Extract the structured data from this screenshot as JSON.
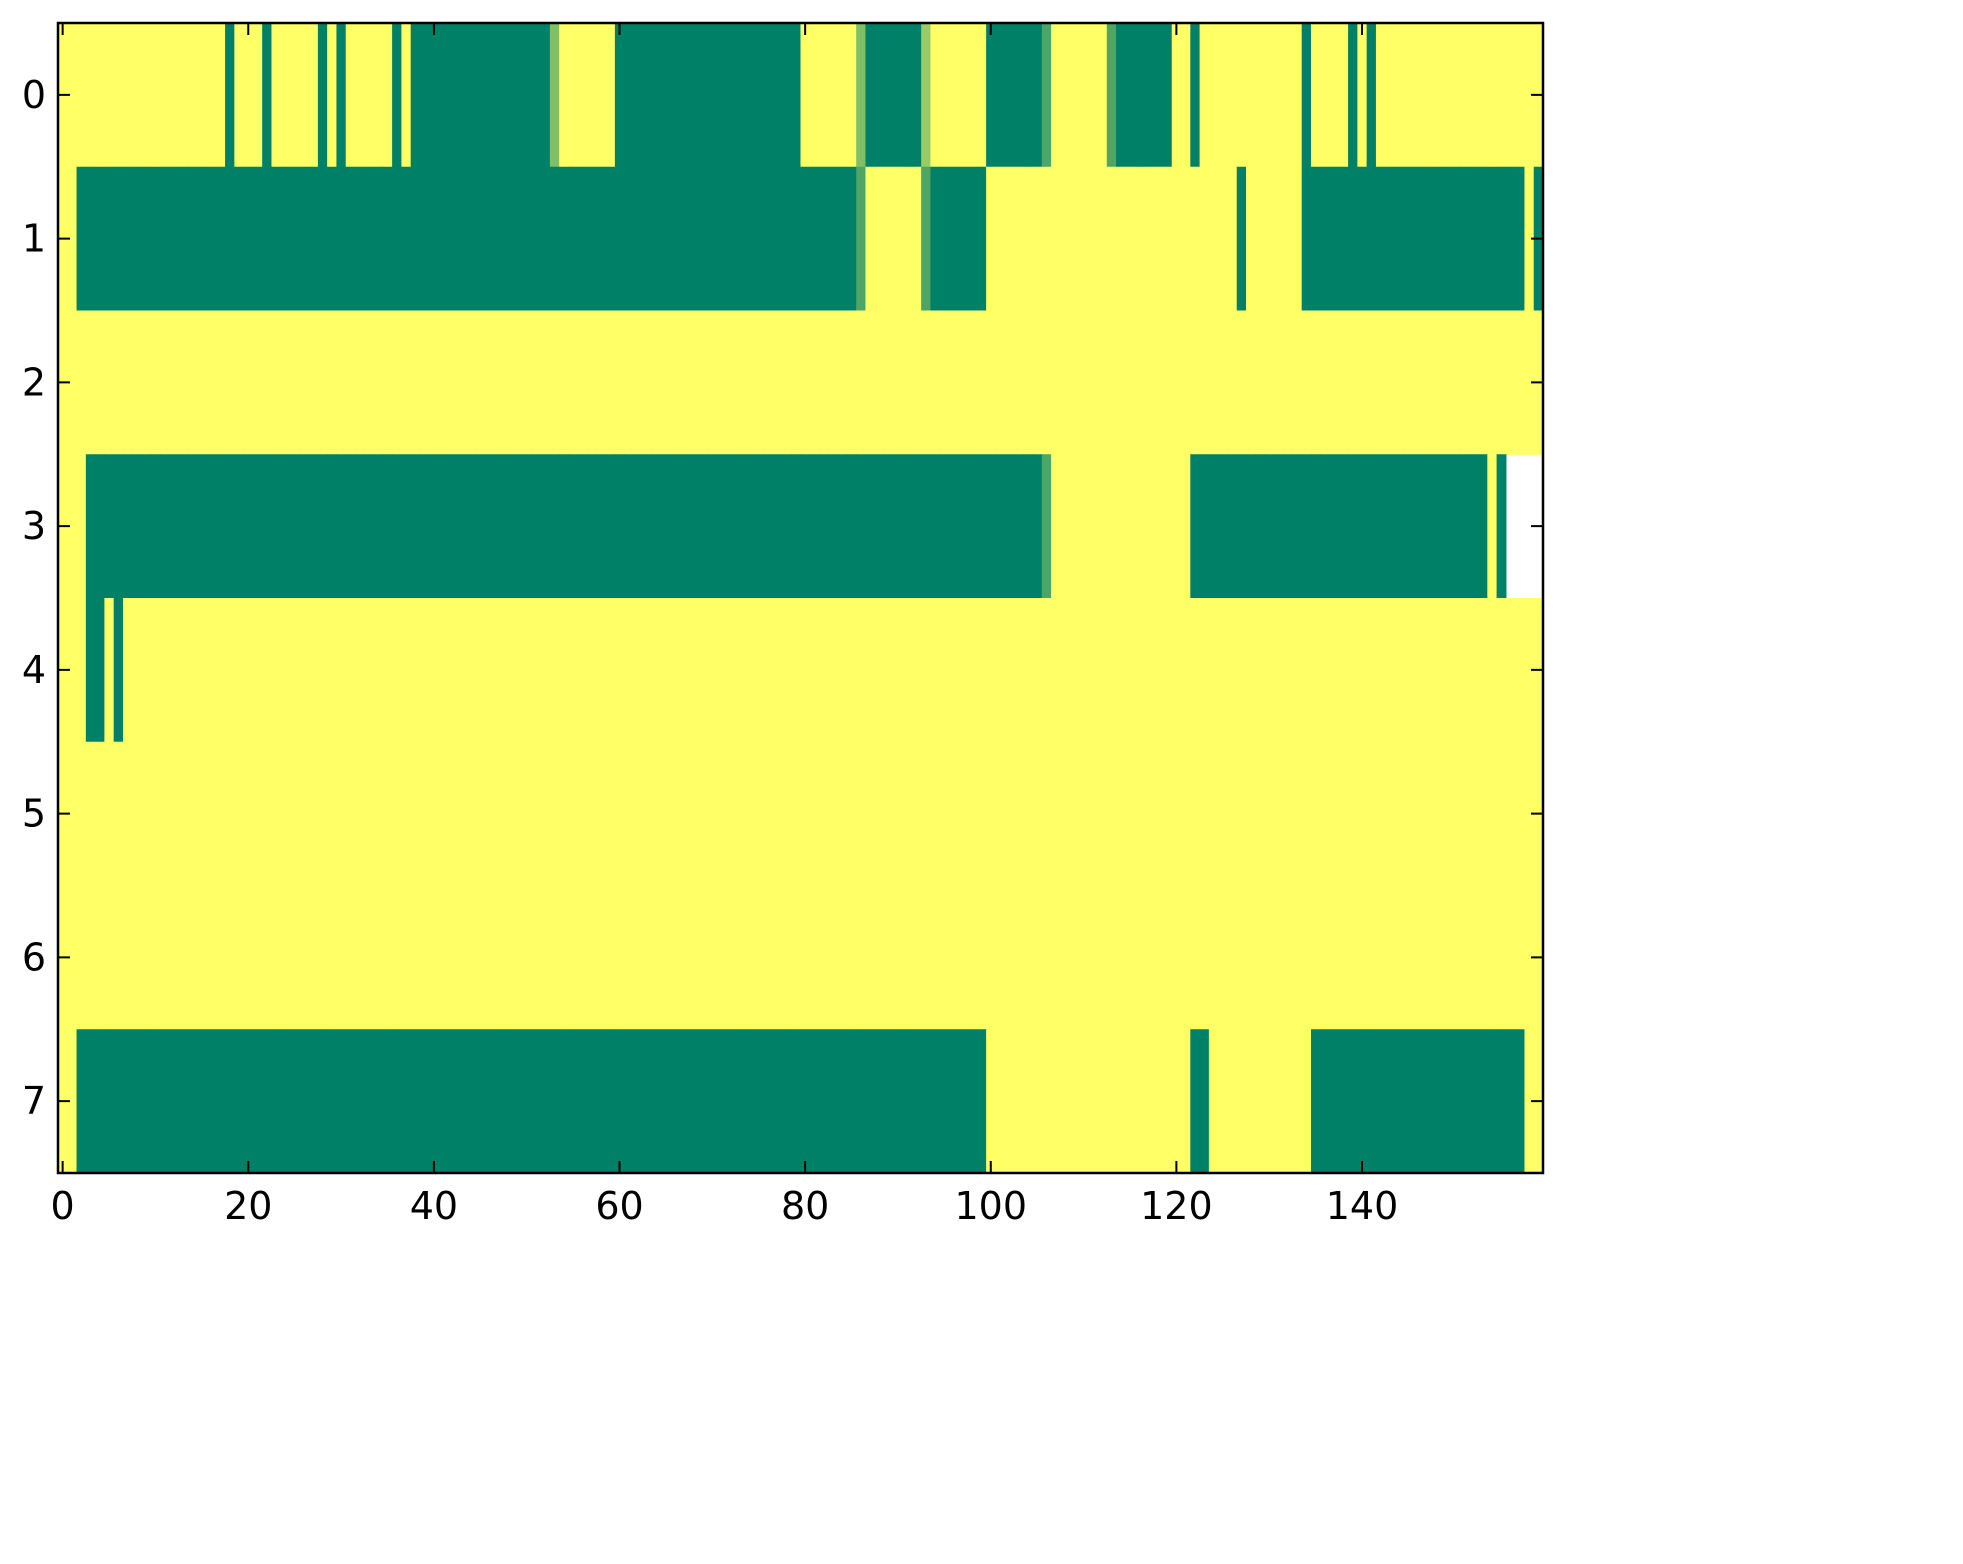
{
  "chart_data": {
    "type": "heatmap",
    "colormap": "summer",
    "xlim": [
      -0.5,
      159.5
    ],
    "ylim": [
      7.5,
      -0.5
    ],
    "xticks": [
      0,
      20,
      40,
      60,
      80,
      100,
      120,
      140
    ],
    "yticks": [
      0,
      1,
      2,
      3,
      4,
      5,
      6,
      7
    ],
    "z": [
      [
        1,
        1,
        1,
        1,
        1,
        1,
        1,
        1,
        1,
        1,
        1,
        1,
        1,
        1,
        1,
        1,
        1,
        1,
        0,
        1,
        1,
        1,
        0,
        1,
        1,
        1,
        1,
        1,
        0,
        1,
        0,
        1,
        1,
        1,
        1,
        1,
        0,
        1,
        0,
        0,
        0,
        0,
        0,
        0,
        0,
        0,
        0,
        0,
        0,
        0,
        0,
        0,
        0,
        0.5,
        1,
        1,
        1,
        1,
        1,
        1,
        0,
        0,
        0,
        0,
        0,
        0,
        0,
        0,
        0,
        0,
        0,
        0,
        0,
        0,
        0,
        0,
        0,
        0,
        0,
        0,
        1,
        1,
        1,
        1,
        1,
        1,
        0.5,
        0,
        0,
        0,
        0,
        0,
        0,
        0.6,
        1,
        1,
        1,
        1,
        1,
        1,
        0,
        0,
        0,
        0,
        0,
        0,
        0.3,
        1,
        1,
        1,
        1,
        1,
        1,
        0.3,
        0,
        0,
        0,
        0,
        0,
        0,
        1,
        1,
        0,
        1,
        1,
        1,
        1,
        1,
        1,
        1,
        1,
        1,
        1,
        1,
        0,
        1,
        1,
        1,
        1,
        0,
        1,
        0,
        1,
        1,
        1,
        1,
        1,
        1,
        1,
        1,
        1,
        1,
        1,
        1,
        1,
        1,
        1,
        1,
        1,
        1
      ],
      [
        1,
        1,
        0,
        0,
        0,
        0,
        0,
        0,
        0,
        0,
        0,
        0,
        0,
        0,
        0,
        0,
        0,
        0,
        0,
        0,
        0,
        0,
        0,
        0,
        0,
        0,
        0,
        0,
        0,
        0,
        0,
        0,
        0,
        0,
        0,
        0,
        0,
        0,
        0,
        0,
        0,
        0,
        0,
        0,
        0,
        0,
        0,
        0,
        0,
        0,
        0,
        0,
        0,
        0,
        0,
        0,
        0,
        0,
        0,
        0,
        0,
        0,
        0,
        0,
        0,
        0,
        0,
        0,
        0,
        0,
        0,
        0,
        0,
        0,
        0,
        0,
        0,
        0,
        0,
        0,
        0,
        0,
        0,
        0,
        0,
        0,
        0.3,
        1,
        1,
        1,
        1,
        1,
        1,
        0.3,
        0,
        0,
        0,
        0,
        0,
        0,
        1,
        1,
        1,
        1,
        1,
        1,
        1,
        1,
        1,
        1,
        1,
        1,
        1,
        1,
        1,
        1,
        1,
        1,
        1,
        1,
        1,
        1,
        1,
        1,
        1,
        1,
        1,
        0,
        1,
        1,
        1,
        1,
        1,
        1,
        0,
        0,
        0,
        0,
        0,
        0,
        0,
        0,
        0,
        0,
        0,
        0,
        0,
        0,
        0,
        0,
        0,
        0,
        0,
        0,
        0,
        0,
        0,
        0,
        1,
        0
      ],
      [
        1,
        1,
        1,
        1,
        1,
        1,
        1,
        1,
        1,
        1,
        1,
        1,
        1,
        1,
        1,
        1,
        1,
        1,
        1,
        1,
        1,
        1,
        1,
        1,
        1,
        1,
        1,
        1,
        1,
        1,
        1,
        1,
        1,
        1,
        1,
        1,
        1,
        1,
        1,
        1,
        1,
        1,
        1,
        1,
        1,
        1,
        1,
        1,
        1,
        1,
        1,
        1,
        1,
        1,
        1,
        1,
        1,
        1,
        1,
        1,
        1,
        1,
        1,
        1,
        1,
        1,
        1,
        1,
        1,
        1,
        1,
        1,
        1,
        1,
        1,
        1,
        1,
        1,
        1,
        1,
        1,
        1,
        1,
        1,
        1,
        1,
        1,
        1,
        1,
        1,
        1,
        1,
        1,
        1,
        1,
        1,
        1,
        1,
        1,
        1,
        1,
        1,
        1,
        1,
        1,
        1,
        1,
        1,
        1,
        1,
        1,
        1,
        1,
        1,
        1,
        1,
        1,
        1,
        1,
        1,
        1,
        1,
        1,
        1,
        1,
        1,
        1,
        1,
        1,
        1,
        1,
        1,
        1,
        1,
        1,
        1,
        1,
        1,
        1,
        1,
        1,
        1,
        1,
        1,
        1,
        1,
        1,
        1,
        1,
        1,
        1,
        1,
        1,
        1,
        1,
        1,
        1,
        1,
        1,
        1
      ],
      [
        1,
        1,
        1,
        0,
        0,
        0,
        0,
        0,
        0,
        0,
        0,
        0,
        0,
        0,
        0,
        0,
        0,
        0,
        0,
        0,
        0,
        0,
        0,
        0,
        0,
        0,
        0,
        0,
        0,
        0,
        0,
        0,
        0,
        0,
        0,
        0,
        0,
        0,
        0,
        0,
        0,
        0,
        0,
        0,
        0,
        0,
        0,
        0,
        0,
        0,
        0,
        0,
        0,
        0,
        0,
        0,
        0,
        0,
        0,
        0,
        0,
        0,
        0,
        0,
        0,
        0,
        0,
        0,
        0,
        0,
        0,
        0,
        0,
        0,
        0,
        0,
        0,
        0,
        0,
        0,
        0,
        0,
        0,
        0,
        0,
        0,
        0,
        0,
        0,
        0,
        0,
        0,
        0,
        0,
        0,
        0,
        0,
        0,
        0,
        0,
        0,
        0,
        0,
        0,
        0,
        0,
        0.3,
        1,
        1,
        1,
        1,
        1,
        1,
        1,
        1,
        1,
        1,
        1,
        1,
        1,
        1,
        1,
        0,
        0,
        0,
        0,
        0,
        0,
        0,
        0,
        0,
        0,
        0,
        0,
        0,
        0,
        0,
        0,
        0,
        0,
        0,
        0,
        0,
        0,
        0,
        0,
        0,
        0,
        0,
        0,
        0,
        0,
        0,
        0,
        1,
        0
      ],
      [
        1,
        1,
        1,
        0,
        0,
        1,
        0,
        1,
        1,
        1,
        1,
        1,
        1,
        1,
        1,
        1,
        1,
        1,
        1,
        1,
        1,
        1,
        1,
        1,
        1,
        1,
        1,
        1,
        1,
        1,
        1,
        1,
        1,
        1,
        1,
        1,
        1,
        1,
        1,
        1,
        1,
        1,
        1,
        1,
        1,
        1,
        1,
        1,
        1,
        1,
        1,
        1,
        1,
        1,
        1,
        1,
        1,
        1,
        1,
        1,
        1,
        1,
        1,
        1,
        1,
        1,
        1,
        1,
        1,
        1,
        1,
        1,
        1,
        1,
        1,
        1,
        1,
        1,
        1,
        1,
        1,
        1,
        1,
        1,
        1,
        1,
        1,
        1,
        1,
        1,
        1,
        1,
        1,
        1,
        1,
        1,
        1,
        1,
        1,
        1,
        1,
        1,
        1,
        1,
        1,
        1,
        1,
        1,
        1,
        1,
        1,
        1,
        1,
        1,
        1,
        1,
        1,
        1,
        1,
        1,
        1,
        1,
        1,
        1,
        1,
        1,
        1,
        1,
        1,
        1,
        1,
        1,
        1,
        1,
        1,
        1,
        1,
        1,
        1,
        1,
        1,
        1,
        1,
        1,
        1,
        1,
        1,
        1,
        1,
        1,
        1,
        1,
        1,
        1,
        1,
        1,
        1,
        1,
        1,
        1
      ],
      [
        1,
        1,
        1,
        1,
        1,
        1,
        1,
        1,
        1,
        1,
        1,
        1,
        1,
        1,
        1,
        1,
        1,
        1,
        1,
        1,
        1,
        1,
        1,
        1,
        1,
        1,
        1,
        1,
        1,
        1,
        1,
        1,
        1,
        1,
        1,
        1,
        1,
        1,
        1,
        1,
        1,
        1,
        1,
        1,
        1,
        1,
        1,
        1,
        1,
        1,
        1,
        1,
        1,
        1,
        1,
        1,
        1,
        1,
        1,
        1,
        1,
        1,
        1,
        1,
        1,
        1,
        1,
        1,
        1,
        1,
        1,
        1,
        1,
        1,
        1,
        1,
        1,
        1,
        1,
        1,
        1,
        1,
        1,
        1,
        1,
        1,
        1,
        1,
        1,
        1,
        1,
        1,
        1,
        1,
        1,
        1,
        1,
        1,
        1,
        1,
        1,
        1,
        1,
        1,
        1,
        1,
        1,
        1,
        1,
        1,
        1,
        1,
        1,
        1,
        1,
        1,
        1,
        1,
        1,
        1,
        1,
        1,
        1,
        1,
        1,
        1,
        1,
        1,
        1,
        1,
        1,
        1,
        1,
        1,
        1,
        1,
        1,
        1,
        1,
        1,
        1,
        1,
        1,
        1,
        1,
        1,
        1,
        1,
        1,
        1,
        1,
        1,
        1,
        1,
        1,
        1,
        1,
        1,
        1,
        1
      ],
      [
        1,
        1,
        1,
        1,
        1,
        1,
        1,
        1,
        1,
        1,
        1,
        1,
        1,
        1,
        1,
        1,
        1,
        1,
        1,
        1,
        1,
        1,
        1,
        1,
        1,
        1,
        1,
        1,
        1,
        1,
        1,
        1,
        1,
        1,
        1,
        1,
        1,
        1,
        1,
        1,
        1,
        1,
        1,
        1,
        1,
        1,
        1,
        1,
        1,
        1,
        1,
        1,
        1,
        1,
        1,
        1,
        1,
        1,
        1,
        1,
        1,
        1,
        1,
        1,
        1,
        1,
        1,
        1,
        1,
        1,
        1,
        1,
        1,
        1,
        1,
        1,
        1,
        1,
        1,
        1,
        1,
        1,
        1,
        1,
        1,
        1,
        1,
        1,
        1,
        1,
        1,
        1,
        1,
        1,
        1,
        1,
        1,
        1,
        1,
        1,
        1,
        1,
        1,
        1,
        1,
        1,
        1,
        1,
        1,
        1,
        1,
        1,
        1,
        1,
        1,
        1,
        1,
        1,
        1,
        1,
        1,
        1,
        1,
        1,
        1,
        1,
        1,
        1,
        1,
        1,
        1,
        1,
        1,
        1,
        1,
        1,
        1,
        1,
        1,
        1,
        1,
        1,
        1,
        1,
        1,
        1,
        1,
        1,
        1,
        1,
        1,
        1,
        1,
        1,
        1,
        1,
        1,
        1,
        1,
        1
      ],
      [
        1,
        1,
        0,
        0,
        0,
        0,
        0,
        0,
        0,
        0,
        0,
        0,
        0,
        0,
        0,
        0,
        0,
        0,
        0,
        0,
        0,
        0,
        0,
        0,
        0,
        0,
        0,
        0,
        0,
        0,
        0,
        0,
        0,
        0,
        0,
        0,
        0,
        0,
        0,
        0,
        0,
        0,
        0,
        0,
        0,
        0,
        0,
        0,
        0,
        0,
        0,
        0,
        0,
        0,
        0,
        0,
        0,
        0,
        0,
        0,
        0,
        0,
        0,
        0,
        0,
        0,
        0,
        0,
        0,
        0,
        0,
        0,
        0,
        0,
        0,
        0,
        0,
        0,
        0,
        0,
        0,
        0,
        0,
        0,
        0,
        0,
        0,
        0,
        0,
        0,
        0,
        0,
        0,
        0,
        0,
        0,
        0,
        0,
        0,
        0,
        1,
        1,
        1,
        1,
        1,
        1,
        1,
        1,
        1,
        1,
        1,
        1,
        1,
        1,
        1,
        1,
        1,
        1,
        1,
        1,
        1,
        1,
        0,
        0,
        1,
        1,
        1,
        1,
        1,
        1,
        1,
        1,
        1,
        1,
        1,
        0,
        0,
        0,
        0,
        0,
        0,
        0,
        0,
        0,
        0,
        0,
        0,
        0,
        0,
        0,
        0,
        0,
        0,
        0,
        0,
        0,
        0,
        0,
        1,
        1
      ]
    ]
  }
}
